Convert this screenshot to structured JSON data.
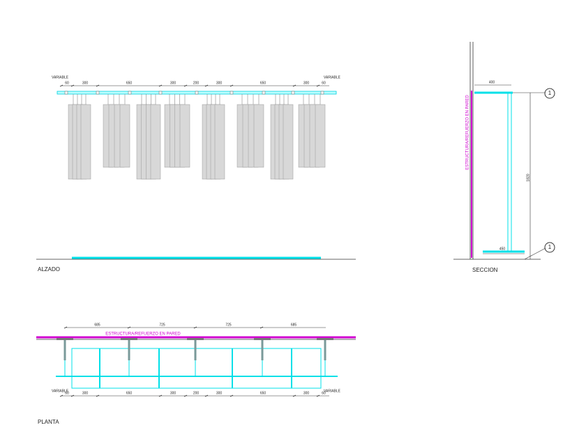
{
  "alzado": {
    "label": "ALZADO",
    "variable_left": "VARIABLE",
    "variable_right": "VARIABLE",
    "dims": [
      60,
      300,
      650,
      300,
      200,
      300,
      650,
      300,
      60
    ]
  },
  "seccion": {
    "label": "SECCION",
    "wall_label": "ESTRUCTURA/REFUERZO EN PARED",
    "width_top": 400,
    "height": 1820,
    "width_base": 450,
    "callouts": [
      "1",
      "1"
    ]
  },
  "planta": {
    "label": "PLANTA",
    "wall_label": "ESTRUCTURA/REFUERZO EN PARED",
    "top_dims": [
      685,
      725,
      725,
      685
    ],
    "variable_left": "VARIABLE",
    "variable_right": "VARIABLE",
    "dims": [
      60,
      300,
      650,
      300,
      200,
      300,
      650,
      300,
      60
    ]
  }
}
